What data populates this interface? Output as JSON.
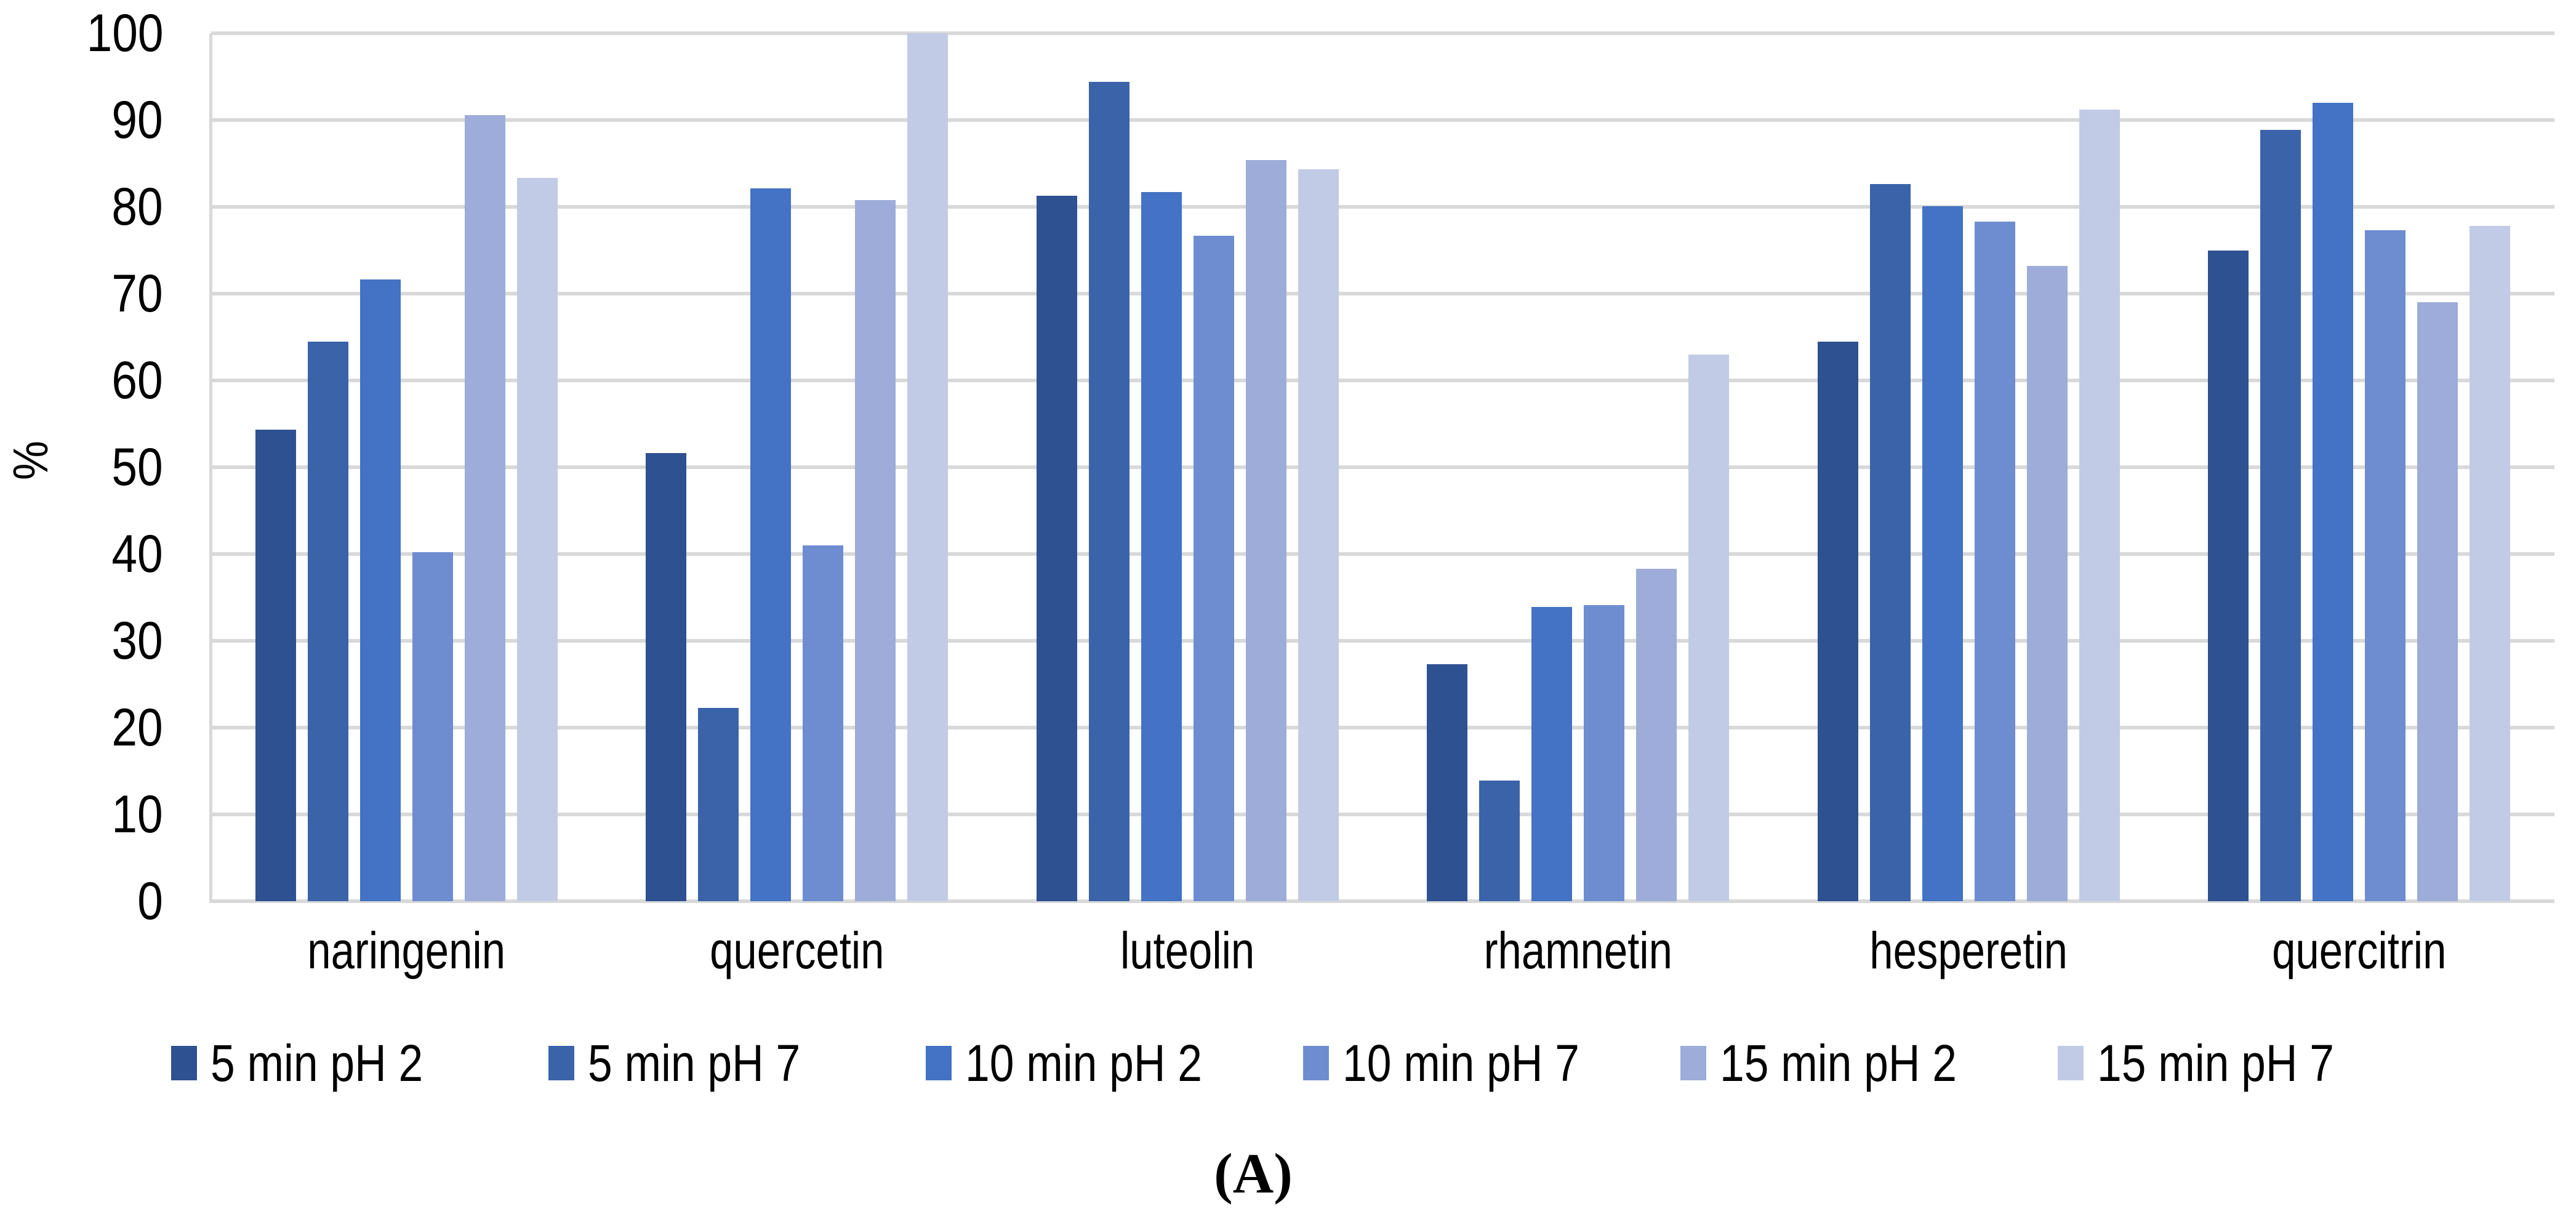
{
  "caption": "(A)",
  "chart_data": {
    "type": "bar",
    "title": "",
    "xlabel": "",
    "ylabel": "%",
    "ylim": [
      0,
      100
    ],
    "yticks": [
      0,
      10,
      20,
      30,
      40,
      50,
      60,
      70,
      80,
      90,
      100
    ],
    "grid": "horizontal",
    "gridline_color": "#D9D9D9",
    "legend_position": "bottom",
    "categories": [
      "naringenin",
      "quercetin",
      "luteolin",
      "rhamnetin",
      "hesperetin",
      "quercitrin"
    ],
    "series": [
      {
        "name": "5 min pH 2",
        "color": "#2E5191",
        "values": [
          54.3,
          51.6,
          81.3,
          27.3,
          64.5,
          75.0
        ]
      },
      {
        "name": "5 min pH 7",
        "color": "#3A63A9",
        "values": [
          64.5,
          22.3,
          94.4,
          13.9,
          82.6,
          88.9
        ]
      },
      {
        "name": "10 min pH 2",
        "color": "#4472C4",
        "values": [
          71.6,
          82.1,
          81.7,
          33.9,
          80.1,
          92.0
        ]
      },
      {
        "name": "10 min pH 7",
        "color": "#6E8CD0",
        "values": [
          40.2,
          41.0,
          76.7,
          34.1,
          78.3,
          77.3
        ]
      },
      {
        "name": "15 min pH 2",
        "color": "#9DACD8",
        "values": [
          90.6,
          80.8,
          85.4,
          38.3,
          73.2,
          69.0
        ]
      },
      {
        "name": "15 min pH 7",
        "color": "#C1CBE6",
        "values": [
          83.3,
          100.0,
          84.3,
          63.0,
          91.2,
          77.8
        ]
      }
    ]
  }
}
